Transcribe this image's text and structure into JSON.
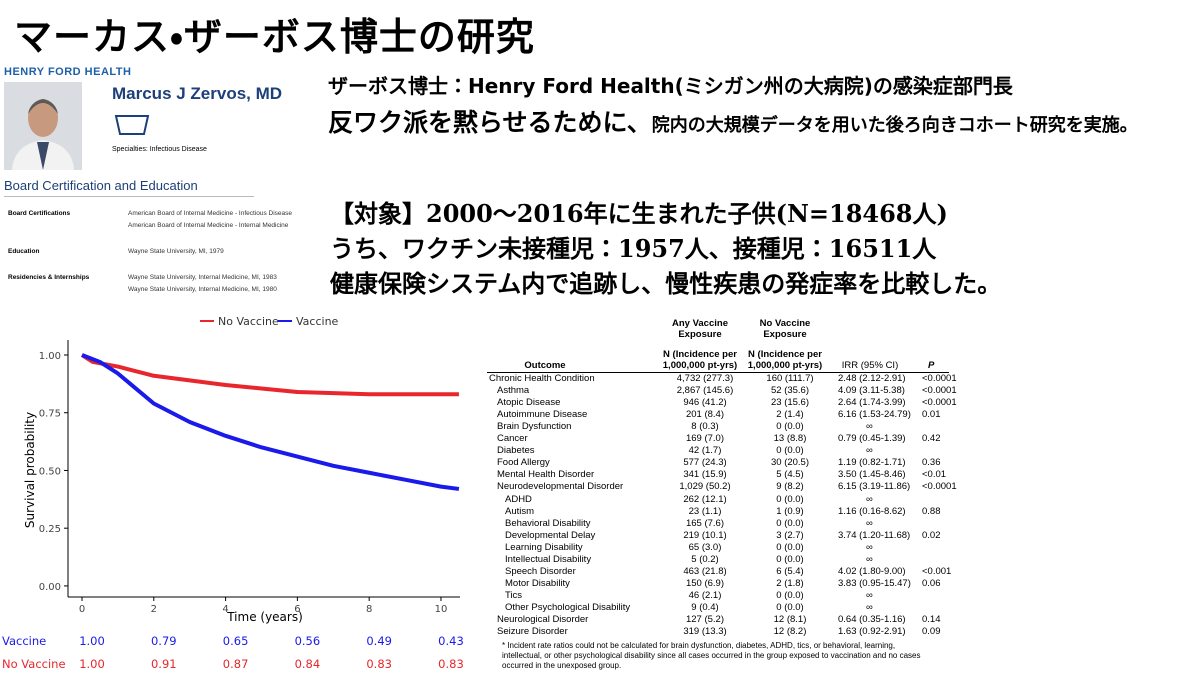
{
  "header": {
    "title": "マーカス・ザーボス博士の研究"
  },
  "profile": {
    "logo": "HENRY FORD HEALTH",
    "name": "Marcus J Zervos, MD",
    "specialties": "Specialties: Infectious Disease",
    "section": "Board Certification and Education",
    "rows": [
      {
        "label": "Board Certifications",
        "items": [
          "American Board of Internal Medicine - Infectious Disease",
          "American Board of Internal Medicine - Internal Medicine"
        ]
      },
      {
        "label": "Education",
        "items": [
          "Wayne State University, MI, 1979"
        ]
      },
      {
        "label": "Residencies & Internships",
        "items": [
          "Wayne State University, Internal Medicine, MI, 1983",
          "Wayne State University, Internal Medicine, MI, 1980"
        ]
      }
    ]
  },
  "body": {
    "line1": "ザーボス博士：Henry Ford Health(ミシガン州の大病院)の感染症部門長",
    "line2_large": "反ワク派を黙らせるために、",
    "line2_small": "院内の大規模データを用いた後ろ向きコホート研究を実施。",
    "points": [
      "【対象】2000～2016年に生まれた子供(N=18468人)",
      "うち、ワクチン未接種児：1957人、接種児：16511人",
      "健康保険システム内で追跡し、慢性疾患の発症率を比較した。"
    ]
  },
  "chart_data": {
    "type": "line",
    "x_label": "Time (years)",
    "y_label": "Survival probability",
    "legend": "top",
    "xlim": [
      -0.39,
      10.53
    ],
    "ylim": [
      -0.048,
      1.065
    ],
    "xticks": [
      0,
      2,
      4,
      6,
      8,
      10
    ],
    "yticks": [
      {
        "value": 0,
        "label": "0.00"
      },
      {
        "value": 0.25,
        "label": "0.25"
      },
      {
        "value": 0.5,
        "label": "0.50"
      },
      {
        "value": 0.75,
        "label": "0.75"
      },
      {
        "value": 1,
        "label": "1.00"
      }
    ],
    "series": [
      {
        "name": "No Vaccine",
        "color": "#e8262b",
        "x": [
          0,
          0.3,
          1,
          2,
          3,
          4,
          5,
          6,
          7,
          8,
          9,
          10,
          10.5
        ],
        "values": [
          1.0,
          0.97,
          0.95,
          0.91,
          0.89,
          0.87,
          0.855,
          0.84,
          0.835,
          0.83,
          0.83,
          0.83,
          0.83
        ],
        "table_values": [
          "1.00",
          "0.91",
          "0.87",
          "0.84",
          "0.83",
          "0.83"
        ]
      },
      {
        "name": "Vaccine",
        "color": "#1a1aeb",
        "x": [
          0,
          0.5,
          1,
          2,
          3,
          4,
          5,
          6,
          7,
          8,
          9,
          10,
          10.5
        ],
        "values": [
          1.0,
          0.97,
          0.92,
          0.79,
          0.71,
          0.65,
          0.6,
          0.56,
          0.52,
          0.49,
          0.46,
          0.43,
          0.42
        ],
        "table_values": [
          "1.00",
          "0.79",
          "0.65",
          "0.56",
          "0.49",
          "0.43"
        ]
      }
    ]
  },
  "table": {
    "headers": {
      "any": [
        "Any Vaccine",
        "Exposure"
      ],
      "none": [
        "No Vaccine",
        "Exposure"
      ],
      "outcome": "Outcome",
      "n_any": [
        "N (Incidence per",
        "1,000,000 pt-yrs)"
      ],
      "n_none": [
        "N (Incidence per",
        "1,000,000 pt-yrs)"
      ],
      "irr": "IRR (95% CI)",
      "p": "P"
    },
    "rows": [
      {
        "outcome": "Chronic Health Condition",
        "any": "4,732 (277.3)",
        "none": "160 (111.7)",
        "irr": "2.48 (2.12-2.91)",
        "p": "<0.0001"
      },
      {
        "outcome": "Asthma",
        "any": "2,867 (145.6)",
        "none": "52 (35.6)",
        "irr": "4.09 (3.11-5.38)",
        "p": "<0.0001"
      },
      {
        "outcome": "Atopic Disease",
        "any": "946 (41.2)",
        "none": "23 (15.6)",
        "irr": "2.64 (1.74-3.99)",
        "p": "<0.0001"
      },
      {
        "outcome": "Autoimmune Disease",
        "any": "201 (8.4)",
        "none": "2 (1.4)",
        "irr": "6.16 (1.53-24.79)",
        "p": "0.01"
      },
      {
        "outcome": "Brain Dysfunction",
        "any": "8 (0.3)",
        "none": "0 (0.0)",
        "irr": "∞"
      },
      {
        "outcome": "Cancer",
        "any": "169 (7.0)",
        "none": "13 (8.8)",
        "irr": "0.79 (0.45-1.39)",
        "p": "0.42"
      },
      {
        "outcome": "Diabetes",
        "any": "42 (1.7)",
        "none": "0 (0.0)",
        "irr": "∞"
      },
      {
        "outcome": "Food Allergy",
        "any": "577 (24.3)",
        "none": "30 (20.5)",
        "irr": "1.19 (0.82-1.71)",
        "p": "0.36"
      },
      {
        "outcome": "Mental Health Disorder",
        "any": "341 (15.9)",
        "none": "5 (4.5)",
        "irr": "3.50 (1.45-8.46)",
        "p": "<0.01"
      },
      {
        "outcome": "Neurodevelopmental Disorder",
        "any": "1,029 (50.2)",
        "none": "9 (8.2)",
        "irr": "6.15 (3.19-11.86)",
        "p": "<0.0001"
      },
      {
        "outcome": "ADHD",
        "any": "262 (12.1)",
        "none": "0 (0.0)",
        "irr": "∞"
      },
      {
        "outcome": "Autism",
        "any": "23 (1.1)",
        "none": "1 (0.9)",
        "irr": "1.16 (0.16-8.62)",
        "p": "0.88"
      },
      {
        "outcome": "Behavioral Disability",
        "any": "165 (7.6)",
        "none": "0 (0.0)",
        "irr": "∞"
      },
      {
        "outcome": "Developmental Delay",
        "any": "219 (10.1)",
        "none": "3 (2.7)",
        "irr": "3.74 (1.20-11.68)",
        "p": "0.02"
      },
      {
        "outcome": "Learning Disability",
        "any": "65 (3.0)",
        "none": "0 (0.0)",
        "irr": "∞"
      },
      {
        "outcome": "Intellectual Disability",
        "any": "5 (0.2)",
        "none": "0 (0.0)",
        "irr": "∞"
      },
      {
        "outcome": "Speech Disorder",
        "any": "463 (21.8)",
        "none": "6 (5.4)",
        "irr": "4.02 (1.80-9.00)",
        "p": "<0.001"
      },
      {
        "outcome": "Motor Disability",
        "any": "150 (6.9)",
        "none": "2 (1.8)",
        "irr": "3.83 (0.95-15.47)",
        "p": "0.06"
      },
      {
        "outcome": "Tics",
        "any": "46 (2.1)",
        "none": "0 (0.0)",
        "irr": "∞"
      },
      {
        "outcome": "Other Psychological Disability",
        "any": "9 (0.4)",
        "none": "0 (0.0)",
        "irr": "∞"
      },
      {
        "outcome": "Neurological Disorder",
        "any": "127 (5.2)",
        "none": "12 (8.1)",
        "irr": "0.64 (0.35-1.16)",
        "p": "0.14"
      },
      {
        "outcome": "Seizure Disorder",
        "any": "319 (13.3)",
        "none": "12 (8.2)",
        "irr": "1.63 (0.92-2.91)",
        "p": "0.09"
      }
    ],
    "footnote": "* Incident rate ratios could not be calculated for brain dysfunction, diabetes, ADHD, tics, or behavioral, learning, intellectual, or other psychological disability since all cases occurred in the group exposed to vaccination and no cases occurred in the unexposed group."
  }
}
